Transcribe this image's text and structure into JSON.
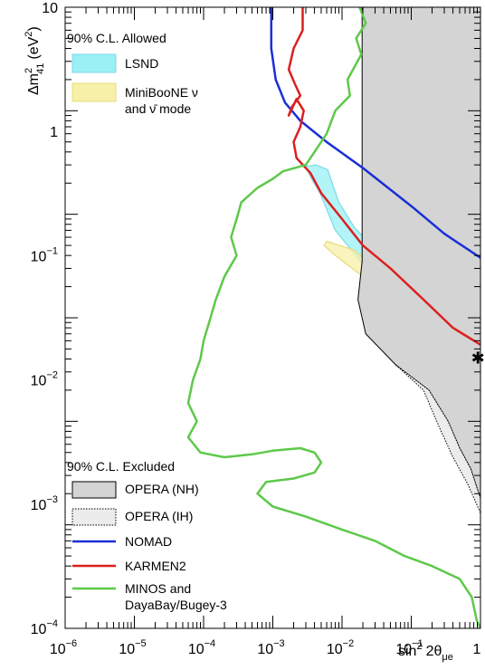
{
  "chart_data": {
    "type": "line",
    "xlabel": {
      "prefix": "sin",
      "sup": "2",
      "main": "2θ",
      "sub": "μe"
    },
    "ylabel": {
      "prefix": "Δm",
      "sub": "41",
      "sup": "2",
      "unit_open": "(eV",
      "unit_sup": "2",
      "unit_close": ")"
    },
    "x_log": true,
    "y_log": true,
    "xlim": [
      1e-06,
      1
    ],
    "ylim": [
      0.0001,
      100
    ],
    "x_ticks": [
      {
        "base": "10",
        "exp": "−6"
      },
      {
        "base": "10",
        "exp": "−5"
      },
      {
        "base": "10",
        "exp": "−4"
      },
      {
        "base": "10",
        "exp": "−3"
      },
      {
        "base": "10",
        "exp": "−2"
      },
      {
        "base": "10",
        "exp": "−1"
      },
      {
        "base": "1",
        "exp": ""
      }
    ],
    "y_ticks": [
      {
        "base": "10",
        "exp": "−4"
      },
      {
        "base": "10",
        "exp": "−3"
      },
      {
        "base": "10",
        "exp": "−2"
      },
      {
        "base": "10",
        "exp": "−1"
      },
      {
        "base": "1",
        "exp": ""
      },
      {
        "base": "10",
        "exp": ""
      }
    ],
    "allowed_header": "90% C.L. Allowed",
    "excluded_header": "90% C.L. Excluded",
    "legend_allowed": [
      {
        "label": "LSND",
        "color": "#99f0f5",
        "edge": "#7fd9e6"
      },
      {
        "label": "MiniBooNE ν",
        "label2": "and ν̄ mode",
        "color": "#f7f0a8",
        "edge": "#e8dc7a"
      }
    ],
    "legend_excluded": [
      {
        "label": "OPERA (NH)",
        "kind": "fill",
        "color": "#d4d4d4",
        "dash": false
      },
      {
        "label": "OPERA (IH)",
        "kind": "fill",
        "color": "#ececec",
        "dash": true
      },
      {
        "label": "NOMAD",
        "kind": "line",
        "color": "#1a2fd6"
      },
      {
        "label": "KARMEN2",
        "kind": "line",
        "color": "#dd1f1f"
      },
      {
        "label": "MINOS and",
        "label2": "DayaBay/Bugey-3",
        "kind": "line",
        "color": "#5ec94a"
      }
    ],
    "best_fit": {
      "x": 0.92,
      "y": 0.041,
      "symbol": "✱"
    },
    "series": [
      {
        "kind": "band",
        "color": "#99f0f5",
        "edge": "#7fd9e6",
        "polygon": [
          [
            0.0062,
            2.7
          ],
          [
            0.009,
            1.3
          ],
          [
            0.015,
            0.75
          ],
          [
            0.05,
            0.32
          ],
          [
            0.2,
            0.13
          ],
          [
            0.5,
            0.07
          ],
          [
            1,
            0.05
          ],
          [
            1,
            0.032
          ],
          [
            0.4,
            0.05
          ],
          [
            0.1,
            0.11
          ],
          [
            0.02,
            0.33
          ],
          [
            0.008,
            0.7
          ],
          [
            0.0048,
            1.6
          ],
          [
            0.0035,
            2.3
          ],
          [
            0.003,
            2.9
          ],
          [
            0.0042,
            3.0
          ]
        ]
      },
      {
        "kind": "band",
        "color": "#f7f0a8",
        "edge": "#e8dc7a",
        "polygon": [
          [
            0.006,
            0.55
          ],
          [
            0.015,
            0.45
          ],
          [
            0.05,
            0.22
          ],
          [
            0.2,
            0.1
          ],
          [
            0.5,
            0.06
          ],
          [
            1,
            0.045
          ],
          [
            1,
            0.031
          ],
          [
            0.4,
            0.045
          ],
          [
            0.1,
            0.09
          ],
          [
            0.02,
            0.25
          ],
          [
            0.008,
            0.4
          ],
          [
            0.0055,
            0.5
          ]
        ]
      },
      {
        "kind": "area",
        "color": "#d4d4d4",
        "polygon": [
          [
            0.0195,
            100
          ],
          [
            0.0195,
            0.35
          ],
          [
            0.017,
            0.15
          ],
          [
            0.022,
            0.07
          ],
          [
            0.06,
            0.035
          ],
          [
            0.18,
            0.02
          ],
          [
            0.34,
            0.01
          ],
          [
            0.5,
            0.0055
          ],
          [
            0.72,
            0.0035
          ],
          [
            1,
            0.0018
          ],
          [
            1,
            100
          ]
        ]
      },
      {
        "kind": "area",
        "color": "#ececec",
        "dash": true,
        "polygon": [
          [
            0.06,
            0.035
          ],
          [
            0.15,
            0.02
          ],
          [
            0.25,
            0.009
          ],
          [
            0.4,
            0.0045
          ],
          [
            0.65,
            0.0025
          ],
          [
            1,
            0.0013
          ],
          [
            1,
            0.0018
          ],
          [
            0.72,
            0.0035
          ],
          [
            0.5,
            0.0055
          ],
          [
            0.34,
            0.01
          ],
          [
            0.18,
            0.02
          ]
        ]
      },
      {
        "name": "NOMAD",
        "kind": "line",
        "color": "#1a2fd6",
        "points": [
          [
            0.00095,
            100
          ],
          [
            0.00095,
            40
          ],
          [
            0.0011,
            20
          ],
          [
            0.0015,
            12
          ],
          [
            0.0025,
            8
          ],
          [
            0.006,
            5
          ],
          [
            0.02,
            2.8
          ],
          [
            0.1,
            1.2
          ],
          [
            0.3,
            0.65
          ],
          [
            1,
            0.38
          ]
        ]
      },
      {
        "name": "KARMEN2",
        "kind": "line",
        "color": "#dd1f1f",
        "points": [
          [
            0.0027,
            100
          ],
          [
            0.0027,
            60
          ],
          [
            0.002,
            40
          ],
          [
            0.0017,
            25
          ],
          [
            0.0021,
            18
          ],
          [
            0.0025,
            14
          ],
          [
            0.0019,
            11
          ],
          [
            0.0017,
            9
          ],
          [
            0.0022,
            13
          ],
          [
            0.0028,
            10
          ],
          [
            0.0025,
            7
          ],
          [
            0.002,
            5
          ],
          [
            0.0022,
            3.5
          ],
          [
            0.0035,
            2.5
          ],
          [
            0.005,
            1.6
          ],
          [
            0.01,
            0.9
          ],
          [
            0.02,
            0.5
          ],
          [
            0.05,
            0.3
          ],
          [
            0.15,
            0.15
          ],
          [
            0.4,
            0.08
          ],
          [
            1,
            0.055
          ]
        ]
      },
      {
        "name": "MINOS and DayaBay/Bugey-3",
        "kind": "line",
        "color": "#5ec94a",
        "points": [
          [
            0.018,
            100
          ],
          [
            0.022,
            70
          ],
          [
            0.016,
            50
          ],
          [
            0.019,
            35
          ],
          [
            0.012,
            20
          ],
          [
            0.013,
            14
          ],
          [
            0.008,
            10
          ],
          [
            0.006,
            6
          ],
          [
            0.004,
            4
          ],
          [
            0.003,
            3
          ],
          [
            0.0014,
            2.6
          ],
          [
            0.001,
            2.2
          ],
          [
            0.0006,
            1.8
          ],
          [
            0.00035,
            1.3
          ],
          [
            0.0003,
            0.9
          ],
          [
            0.00025,
            0.6
          ],
          [
            0.0003,
            0.4
          ],
          [
            0.0002,
            0.25
          ],
          [
            0.00015,
            0.15
          ],
          [
            0.00012,
            0.09
          ],
          [
            0.0001,
            0.06
          ],
          [
            9e-05,
            0.04
          ],
          [
            7e-05,
            0.025
          ],
          [
            6e-05,
            0.015
          ],
          [
            8e-05,
            0.01
          ],
          [
            6e-05,
            0.007
          ],
          [
            9e-05,
            0.005
          ],
          [
            0.0002,
            0.0045
          ],
          [
            0.0005,
            0.0048
          ],
          [
            0.001,
            0.0052
          ],
          [
            0.0025,
            0.0055
          ],
          [
            0.004,
            0.005
          ],
          [
            0.005,
            0.004
          ],
          [
            0.004,
            0.0032
          ],
          [
            0.002,
            0.0028
          ],
          [
            0.0008,
            0.0026
          ],
          [
            0.0006,
            0.002
          ],
          [
            0.001,
            0.0015
          ],
          [
            0.003,
            0.0012
          ],
          [
            0.01,
            0.0009
          ],
          [
            0.03,
            0.0007
          ],
          [
            0.08,
            0.0005
          ],
          [
            0.2,
            0.0004
          ],
          [
            0.5,
            0.0003
          ],
          [
            0.75,
            0.0002
          ],
          [
            0.88,
            0.00012
          ],
          [
            1,
            0.0001
          ]
        ]
      }
    ]
  }
}
